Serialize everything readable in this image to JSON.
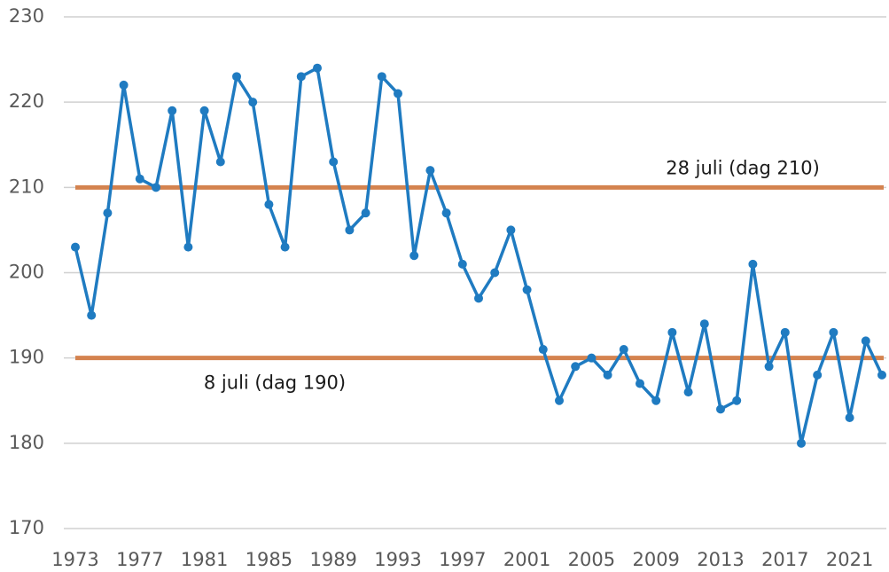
{
  "chart_data": {
    "type": "line",
    "x": [
      1973,
      1974,
      1975,
      1976,
      1977,
      1978,
      1979,
      1980,
      1981,
      1982,
      1983,
      1984,
      1985,
      1986,
      1987,
      1988,
      1989,
      1990,
      1991,
      1992,
      1993,
      1994,
      1995,
      1996,
      1997,
      1998,
      1999,
      2000,
      2001,
      2002,
      2003,
      2004,
      2005,
      2006,
      2007,
      2008,
      2009,
      2010,
      2011,
      2012,
      2013,
      2014,
      2015,
      2016,
      2017,
      2018,
      2019,
      2020,
      2021,
      2022,
      2023
    ],
    "series": [
      {
        "color": "#1f7bc1",
        "values": [
          203,
          195,
          207,
          222,
          211,
          210,
          219,
          203,
          219,
          213,
          223,
          220,
          208,
          203,
          223,
          224,
          213,
          205,
          207,
          223,
          221,
          202,
          212,
          207,
          201,
          197,
          200,
          205,
          198,
          191,
          185,
          189,
          190,
          188,
          191,
          187,
          185,
          193,
          186,
          194,
          184,
          185,
          201,
          189,
          193,
          180,
          188,
          193,
          183,
          192,
          188
        ]
      }
    ],
    "xlim": [
      1973,
      2023
    ],
    "xticks": [
      1973,
      1977,
      1981,
      1985,
      1989,
      1993,
      1997,
      2001,
      2005,
      2009,
      2013,
      2017,
      2021
    ],
    "ylim": [
      170,
      230
    ],
    "yticks": [
      170,
      180,
      190,
      200,
      210,
      220,
      230
    ],
    "grid": true,
    "reference_lines": [
      {
        "value": 210,
        "label": "28 juli (dag 210)",
        "color": "#d4834f"
      },
      {
        "value": 190,
        "label": "8 juli (dag 190)",
        "color": "#d4834f"
      }
    ]
  }
}
